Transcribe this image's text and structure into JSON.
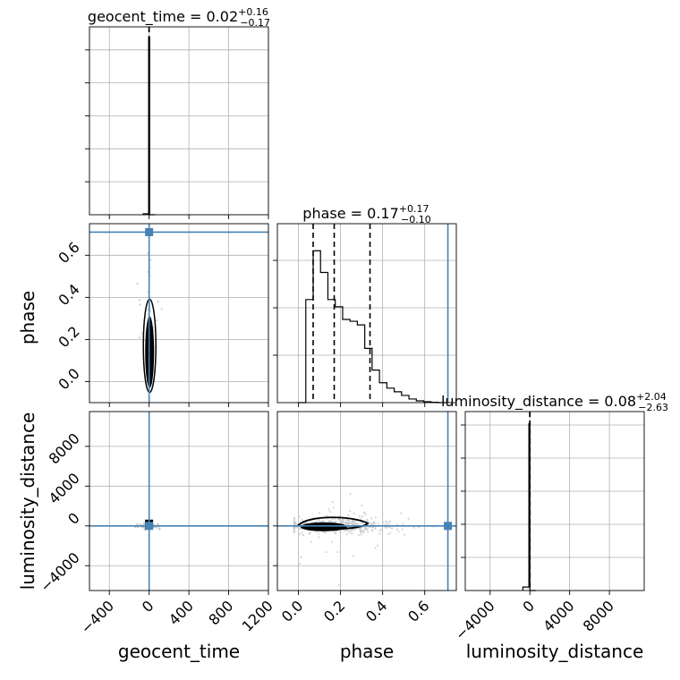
{
  "colors": {
    "truth": "#4682b4",
    "hist": "#000000",
    "grid": "#b0b0b0",
    "points": "#c8c8c8",
    "contour": "#000000"
  },
  "chart_data": {
    "type": "corner",
    "parameters": [
      "geocent_time",
      "phase",
      "luminosity_distance"
    ],
    "truths": {
      "geocent_time": 0,
      "phase": 0.71,
      "luminosity_distance": 0
    },
    "ranges": {
      "geocent_time": [
        -600,
        1200
      ],
      "phase": [
        -0.1,
        0.75
      ],
      "luminosity_distance": [
        -6500,
        11500
      ]
    },
    "titles": [
      {
        "param": "geocent_time",
        "text": "geocent_time = 0.02",
        "sup": "+0.16",
        "sub": "−0.17"
      },
      {
        "param": "phase",
        "text": "phase = 0.17",
        "sup": "+0.17",
        "sub": "−0.10"
      },
      {
        "param": "luminosity_distance",
        "text": "luminosity_distance = 0.08",
        "sup": "+2.04",
        "sub": "−2.63"
      }
    ],
    "ticks": {
      "geocent_time": [
        "−400",
        "0",
        "400",
        "800",
        "1200"
      ],
      "phase_x": [
        "0.0",
        "0.2",
        "0.4",
        "0.6"
      ],
      "phase_y": [
        "0.0",
        "0.2",
        "0.4",
        "0.6"
      ],
      "luminosity_distance_x": [
        "−4000",
        "0",
        "4000",
        "8000"
      ],
      "luminosity_distance_y": [
        "−4000",
        "0",
        "4000",
        "8000"
      ]
    },
    "xlabels": [
      "geocent_time",
      "phase",
      "luminosity_distance"
    ],
    "ylabels": [
      "phase",
      "luminosity_distance"
    ],
    "quantiles": {
      "geocent_time": [
        -0.15,
        0.02,
        0.18
      ],
      "phase": [
        0.07,
        0.17,
        0.34
      ],
      "luminosity_distance": [
        -2.55,
        0.08,
        2.12
      ]
    },
    "hist_phase": {
      "edges": [
        0.0,
        0.035,
        0.07,
        0.105,
        0.14,
        0.175,
        0.21,
        0.245,
        0.28,
        0.315,
        0.35,
        0.385,
        0.42,
        0.455,
        0.49,
        0.525,
        0.56,
        0.595,
        0.63,
        0.665,
        0.7
      ],
      "counts": [
        0.0,
        0.57,
        0.84,
        0.72,
        0.57,
        0.53,
        0.46,
        0.45,
        0.43,
        0.3,
        0.18,
        0.11,
        0.08,
        0.06,
        0.04,
        0.02,
        0.01,
        0.005,
        0.002,
        0.0
      ]
    },
    "hist_geocent_time": {
      "edges": [
        -60,
        -5,
        5,
        60
      ],
      "counts": [
        0.005,
        0.98,
        0.0
      ]
    },
    "hist_luminosity_distance": {
      "edges": [
        -700,
        -100,
        0,
        600
      ],
      "counts": [
        0.02,
        0.97,
        0.0
      ]
    }
  }
}
